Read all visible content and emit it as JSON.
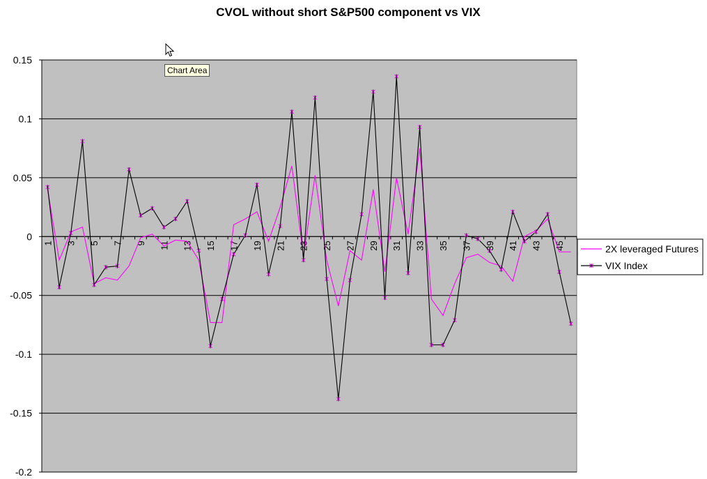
{
  "chart_data": {
    "type": "line",
    "title": "CVOL without short S&P500 component vs VIX",
    "xlabel": "",
    "ylabel": "",
    "ylim": [
      -0.2,
      0.15
    ],
    "yticks": [
      0.15,
      0.1,
      0.05,
      0,
      -0.05,
      -0.1,
      -0.15,
      -0.2
    ],
    "ytick_labels": [
      "0.15",
      "0.1",
      "0.05",
      "0",
      "-0.05",
      "-0.1",
      "-0.15",
      "-0.2"
    ],
    "x": [
      1,
      2,
      3,
      4,
      5,
      6,
      7,
      8,
      9,
      10,
      11,
      12,
      13,
      14,
      15,
      16,
      17,
      18,
      19,
      20,
      21,
      22,
      23,
      24,
      25,
      26,
      27,
      28,
      29,
      30,
      31,
      32,
      33,
      34,
      35,
      36,
      37,
      38,
      39,
      40,
      41,
      42,
      43,
      44,
      45,
      46
    ],
    "xtick_labels": [
      "1",
      "3",
      "5",
      "7",
      "9",
      "11",
      "13",
      "15",
      "17",
      "19",
      "21",
      "23",
      "25",
      "27",
      "29",
      "31",
      "33",
      "35",
      "37",
      "39",
      "41",
      "43",
      "45"
    ],
    "grid": "horizontal",
    "legend_position": "right",
    "series": [
      {
        "name": "2X leveraged Futures",
        "color": "#ff00ff",
        "marker": "none",
        "values": [
          0.04,
          -0.02,
          0.004,
          0.008,
          -0.04,
          -0.035,
          -0.037,
          -0.025,
          -0.001,
          0.002,
          -0.008,
          -0.003,
          -0.004,
          -0.02,
          -0.073,
          -0.073,
          0.01,
          0.015,
          0.021,
          -0.004,
          0.025,
          0.06,
          -0.017,
          0.052,
          -0.02,
          -0.059,
          -0.012,
          -0.02,
          0.04,
          -0.03,
          0.05,
          0.002,
          0.075,
          -0.053,
          -0.067,
          -0.04,
          -0.018,
          -0.015,
          -0.022,
          -0.025,
          -0.038,
          0.0,
          0.005,
          0.015,
          -0.013,
          -0.013
        ]
      },
      {
        "name": "VIX Index",
        "color": "#000000",
        "marker": "asterisk",
        "values": [
          0.042,
          -0.043,
          0.003,
          0.081,
          -0.041,
          -0.026,
          -0.025,
          0.057,
          0.018,
          0.024,
          0.008,
          0.015,
          0.03,
          -0.012,
          -0.093,
          -0.053,
          -0.015,
          0.001,
          0.044,
          -0.032,
          0.009,
          0.106,
          -0.02,
          0.118,
          -0.036,
          -0.138,
          -0.037,
          0.019,
          0.123,
          -0.052,
          0.136,
          -0.031,
          0.093,
          -0.092,
          -0.092,
          -0.071,
          0.001,
          -0.002,
          -0.012,
          -0.028,
          0.021,
          -0.004,
          0.004,
          0.019,
          -0.03,
          -0.074
        ]
      }
    ]
  },
  "tooltip": {
    "text": "Chart Area"
  }
}
